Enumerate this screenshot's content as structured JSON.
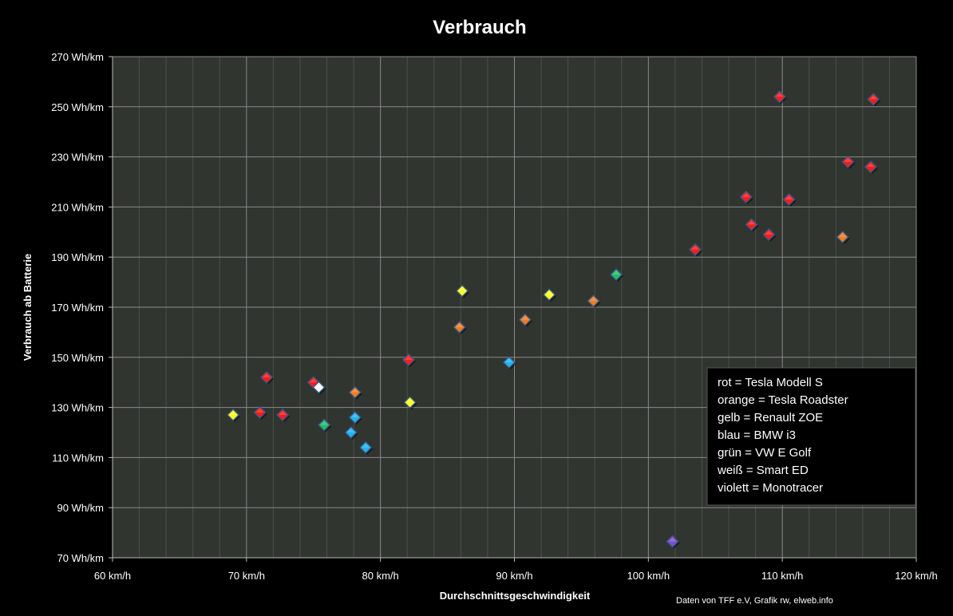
{
  "chart_data": {
    "type": "scatter",
    "title": "Verbrauch",
    "xlabel": "Durchschnittsgeschwindigkeit",
    "ylabel": "Verbrauch ab Batterie",
    "xlim": [
      60,
      120
    ],
    "ylim": [
      70,
      270
    ],
    "x_ticks": [
      60,
      70,
      80,
      90,
      100,
      110,
      120
    ],
    "x_tick_labels": [
      "60 km/h",
      "70 km/h",
      "80 km/h",
      "90 km/h",
      "100 km/h",
      "110 km/h",
      "120 km/h"
    ],
    "y_ticks": [
      70,
      90,
      110,
      130,
      150,
      170,
      190,
      210,
      230,
      250,
      270
    ],
    "y_tick_labels": [
      "70 Wh/km",
      "90 Wh/km",
      "110 Wh/km",
      "130 Wh/km",
      "150 Wh/km",
      "170 Wh/km",
      "190 Wh/km",
      "210 Wh/km",
      "230 Wh/km",
      "250 Wh/km",
      "270 Wh/km"
    ],
    "grid": true,
    "legend_position": "bottom-right",
    "legend_lines": [
      "rot = Tesla Modell S",
      "orange = Tesla Roadster",
      "gelb = Renault ZOE",
      "blau = BMW i3",
      "grün = VW E Golf",
      "weiß = Smart ED",
      "violett = Monotracer"
    ],
    "credit": "Daten von TFF e.V,  Grafik rw, elweb.info",
    "series": [
      {
        "color": "#ff1a1a",
        "points": [
          [
            71.5,
            142
          ],
          [
            71.0,
            128
          ],
          [
            72.7,
            127
          ],
          [
            75.0,
            140
          ],
          [
            82.1,
            149
          ],
          [
            103.5,
            193
          ],
          [
            107.3,
            214
          ],
          [
            107.7,
            203
          ],
          [
            109.0,
            199
          ],
          [
            109.8,
            254
          ],
          [
            110.5,
            213
          ],
          [
            114.9,
            228
          ],
          [
            116.6,
            226
          ],
          [
            116.8,
            253
          ]
        ]
      },
      {
        "color": "#ee7d22",
        "points": [
          [
            78.1,
            136
          ],
          [
            85.9,
            162
          ],
          [
            90.8,
            165
          ],
          [
            95.9,
            172.5
          ],
          [
            114.5,
            198
          ]
        ]
      },
      {
        "color": "#ffff22",
        "points": [
          [
            69.0,
            127
          ],
          [
            82.2,
            132
          ],
          [
            86.1,
            176.5
          ],
          [
            92.6,
            175
          ]
        ]
      },
      {
        "color": "#22b4ee",
        "points": [
          [
            77.8,
            120
          ],
          [
            78.1,
            126
          ],
          [
            78.9,
            114
          ],
          [
            89.6,
            148
          ]
        ]
      },
      {
        "color": "#1fbf6a",
        "points": [
          [
            75.8,
            123
          ],
          [
            97.6,
            183
          ]
        ]
      },
      {
        "color": "#ffffff",
        "points": [
          [
            75.4,
            138
          ]
        ]
      },
      {
        "color": "#7a4fcf",
        "points": [
          [
            101.8,
            76.5
          ]
        ]
      }
    ]
  }
}
